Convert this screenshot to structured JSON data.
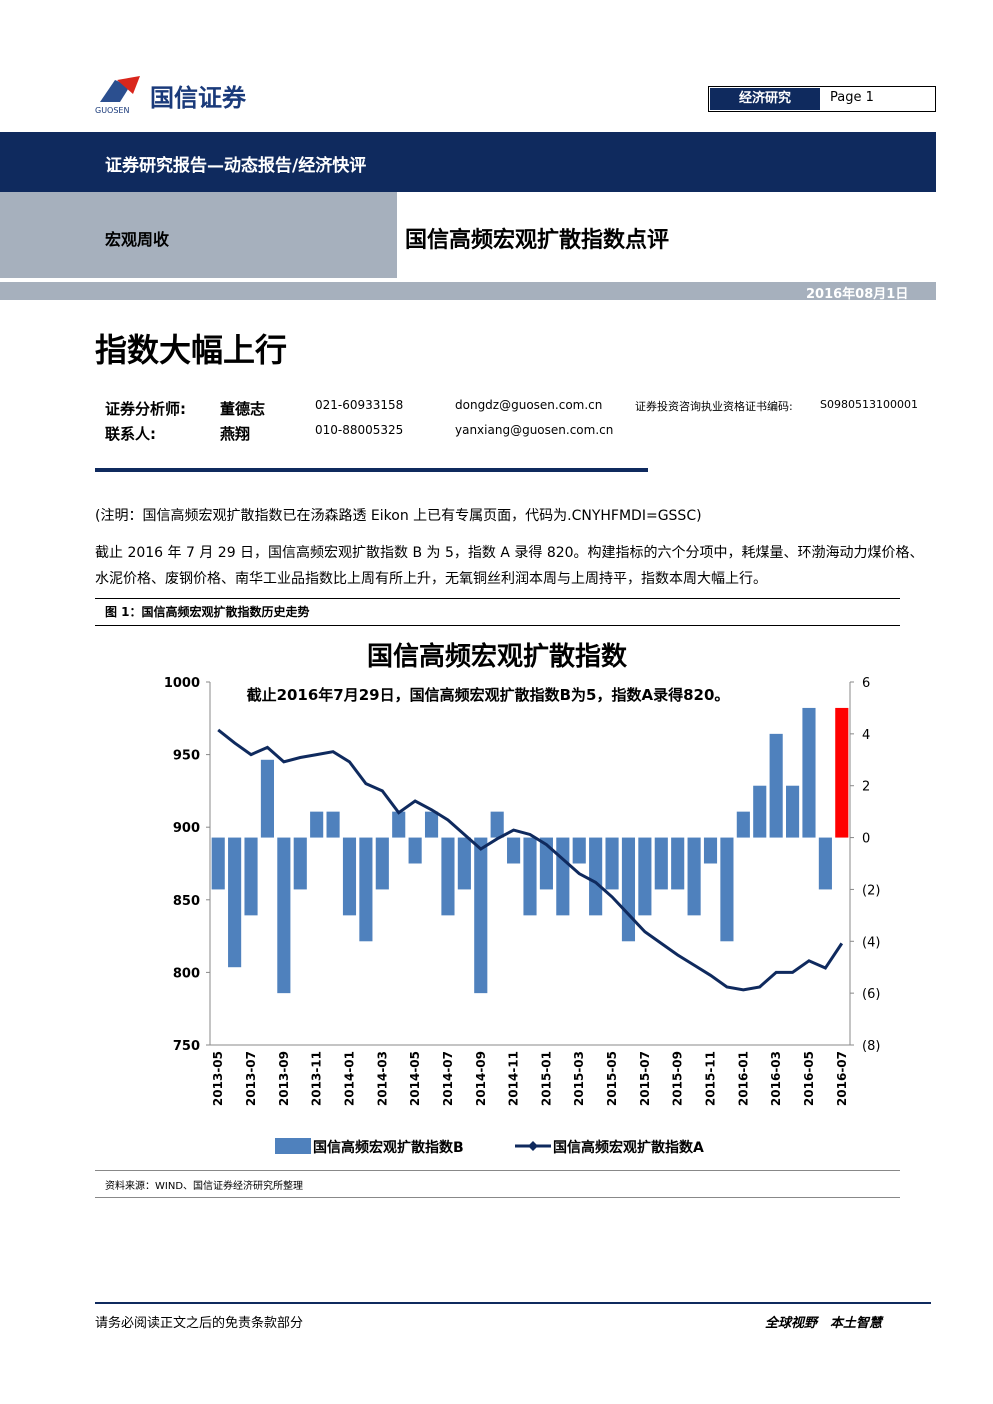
{
  "header": {
    "logo": "国信证券",
    "logo_en": "GUOSEN",
    "dept": "经济研究",
    "page_label": "Page",
    "page_num": "1"
  },
  "report_type": "证券研究报告—动态报告/经济快评",
  "section": "宏观周收",
  "report_title": "国信高频宏观扩散指数点评",
  "date": "2016年08月1日",
  "headline": "指数大幅上行",
  "analysts": {
    "rows": [
      [
        "证券分析师:",
        "董德志",
        "021-60933158",
        "dongdz@guosen.com.cn",
        "证券投资咨询执业资格证书编码:",
        "S0980513100001"
      ],
      [
        "联系人:",
        "燕翔",
        "010-88005325",
        "yanxiang@guosen.com.cn"
      ]
    ]
  },
  "note": "(注明：国信高频宏观扩散指数已在汤森路透 Eikon 上已有专属页面，代码为.CNYHFMDI=GSSC)",
  "paragraph": "截止 2016 年 7 月 29 日，国信高频宏观扩散指数 B 为 5，指数 A 录得 820。构建指标的六个分项中，耗煤量、环渤海动力煤价格、水泥价格、废钢价格、南华工业品指数比上周有所上升，无氧铜丝利润本周与上周持平，指数本周大幅上行。",
  "figure_caption": "图 1：国信高频宏观扩散指数历史走势",
  "chart_data": {
    "type": "bar-line",
    "title": "国信高频宏观扩散指数",
    "annotation": "截止2016年7月29日，国信高频宏观扩散指数B为5，指数A录得820。",
    "categories": [
      "2013-05",
      null,
      "2013-07",
      null,
      "2013-09",
      null,
      "2013-11",
      null,
      "2014-01",
      null,
      "2014-03",
      null,
      "2014-05",
      null,
      "2014-07",
      null,
      "2014-09",
      null,
      "2014-11",
      null,
      "2015-01",
      null,
      "2015-03",
      null,
      "2015-05",
      null,
      "2015-07",
      null,
      "2015-09",
      null,
      "2015-11",
      null,
      "2016-01",
      null,
      "2016-03",
      null,
      "2016-05",
      null,
      "2016-07"
    ],
    "series": [
      {
        "name": "国信高频宏观扩散指数B",
        "type": "bar",
        "axis": "y2",
        "color": "#4f81bd",
        "last_color": "#ff0000",
        "values": [
          -2,
          -5,
          -3,
          3,
          -6,
          -2,
          1,
          1,
          -3,
          -4,
          -2,
          1,
          -1,
          1,
          -3,
          -2,
          -6,
          1,
          -1,
          -3,
          -2,
          -3,
          -1,
          -3,
          -2,
          -4,
          -3,
          -2,
          -2,
          -3,
          -1,
          -4,
          1,
          2,
          4,
          2,
          5,
          -2,
          5
        ]
      },
      {
        "name": "国信高频宏观扩散指数A",
        "type": "line",
        "color": "#0f2a5e",
        "values": [
          967,
          958,
          950,
          955,
          945,
          948,
          950,
          952,
          945,
          930,
          925,
          910,
          918,
          912,
          905,
          895,
          885,
          892,
          898,
          895,
          888,
          878,
          868,
          862,
          852,
          840,
          828,
          820,
          812,
          805,
          798,
          790,
          788,
          790,
          800,
          800,
          808,
          803,
          820
        ]
      }
    ],
    "ylim": [
      750,
      1000
    ],
    "yticks": [
      750,
      800,
      850,
      900,
      950,
      1000
    ],
    "y2lim": [
      -8,
      6
    ],
    "y2ticks": [
      {
        "value": -8,
        "label": "(8)"
      },
      {
        "value": -6,
        "label": "(6)"
      },
      {
        "value": -4,
        "label": "(4)"
      },
      {
        "value": -2,
        "label": "(2)"
      },
      0,
      2,
      4,
      6
    ]
  },
  "source": "资料来源：WIND、国信证券经济研究所整理",
  "footer": {
    "left": "请务必阅读正文之后的免责条款部分",
    "right": "全球视野　本土智慧"
  }
}
